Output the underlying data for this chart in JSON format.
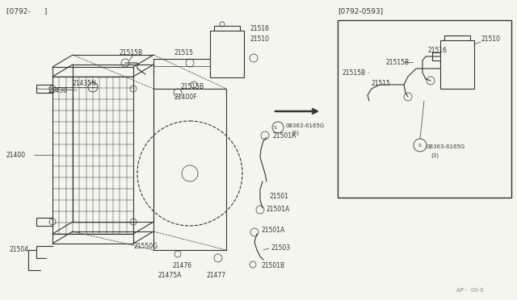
{
  "bg_color": "#f5f5f0",
  "line_color": "#333333",
  "title_left": "[0792-      ]",
  "title_right": "[0792-0593]",
  "footer": "AP··  00·0"
}
